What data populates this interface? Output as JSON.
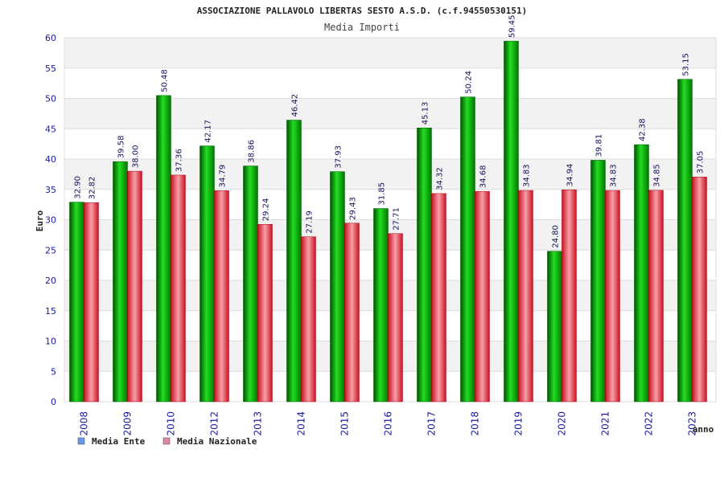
{
  "chart_data": {
    "type": "bar",
    "title": "ASSOCIAZIONE PALLAVOLO LIBERTAS SESTO A.S.D. (c.f.94550530151)",
    "subtitle": "Media Importi",
    "xlabel": "anno",
    "ylabel": "Euro",
    "ylim": [
      0,
      60
    ],
    "yticks": [
      0,
      5,
      10,
      15,
      20,
      25,
      30,
      35,
      40,
      45,
      50,
      55,
      60
    ],
    "grid": true,
    "legend_position": "bottom-left",
    "categories": [
      "2008",
      "2009",
      "2010",
      "2012",
      "2013",
      "2014",
      "2015",
      "2016",
      "2017",
      "2018",
      "2019",
      "2020",
      "2021",
      "2022",
      "2023"
    ],
    "series": [
      {
        "name": "Media Ente",
        "color": "#00aa00",
        "legend_color": "#6699ee",
        "values": [
          32.9,
          39.58,
          50.48,
          42.17,
          38.86,
          46.42,
          37.93,
          31.85,
          45.13,
          50.24,
          59.45,
          24.8,
          39.81,
          42.38,
          53.15
        ],
        "labels": [
          "32.90",
          "39.58",
          "50.48",
          "42.17",
          "38.86",
          "46.42",
          "37.93",
          "31.85",
          "45.13",
          "50.24",
          "59.45",
          "24.80",
          "39.81",
          "42.38",
          "53.15"
        ]
      },
      {
        "name": "Media Nazionale",
        "color": "#dd2233",
        "legend_color": "#dd88aa",
        "values": [
          32.82,
          38.0,
          37.36,
          34.79,
          29.24,
          27.19,
          29.43,
          27.71,
          34.32,
          34.68,
          34.83,
          34.94,
          34.83,
          34.85,
          37.05
        ],
        "labels": [
          "32.82",
          "38.00",
          "37.36",
          "34.79",
          "29.24",
          "27.19",
          "29.43",
          "27.71",
          "34.32",
          "34.68",
          "34.83",
          "34.94",
          "34.83",
          "34.85",
          "37.05"
        ]
      }
    ]
  }
}
